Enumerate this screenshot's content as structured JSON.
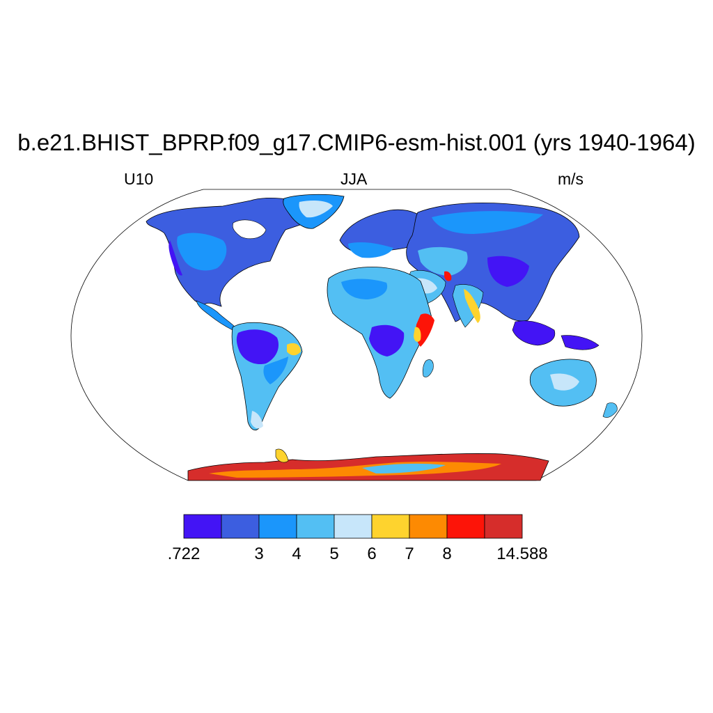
{
  "title": "b.e21.BHIST_BPRP.f09_g17.CMIP6-esm-hist.001 (yrs 1940-1964)",
  "left_subtitle": "U10",
  "center_subtitle": "JJA",
  "right_subtitle": "m/s",
  "colorbar": {
    "colors": [
      "#4314f5",
      "#3c5ee0",
      "#1b96fb",
      "#53bff3",
      "#c7e6fa",
      "#fed32e",
      "#fd8a02",
      "#fd1408",
      "#d62d2b"
    ],
    "boundary_labels": [
      ".722",
      "",
      "3",
      "4",
      "5",
      "6",
      "7",
      "8",
      "",
      "14.588"
    ]
  },
  "map": {
    "projection": "Robinson",
    "land_only": true,
    "coastlines": true
  }
}
